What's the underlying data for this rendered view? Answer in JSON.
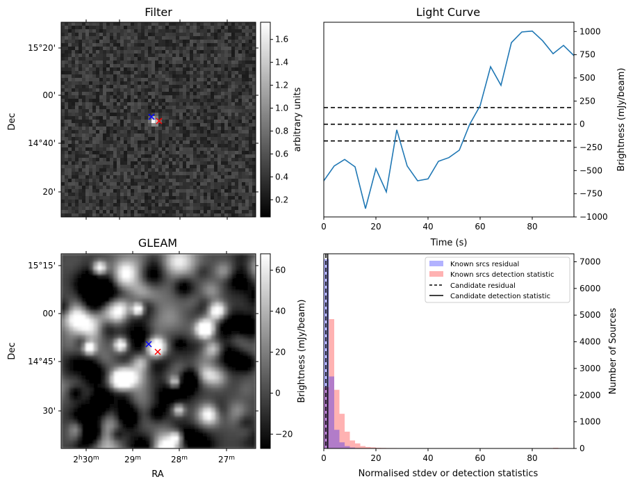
{
  "chart_data": [
    {
      "id": "filter",
      "type": "heatmap",
      "title": "Filter",
      "xlabel": "",
      "ylabel": "Dec",
      "y_ticks": [
        "15°20'",
        "00'",
        "14°40'",
        "20'"
      ],
      "colorbar": {
        "label": "arbitrary units",
        "range": [
          0.05,
          1.75
        ],
        "ticks": [
          0.2,
          0.4,
          0.6,
          0.8,
          1.0,
          1.2,
          1.4,
          1.6
        ],
        "tick_labels": [
          "0.2",
          "0.4",
          "0.6",
          "0.8",
          "1.0",
          "1.2",
          "1.4",
          "1.6"
        ]
      },
      "markers": [
        {
          "name": "candidate",
          "symbol": "x",
          "color": "#0000ff"
        },
        {
          "name": "catalog",
          "symbol": "x",
          "color": "#ff0000"
        }
      ]
    },
    {
      "id": "light_curve",
      "type": "line",
      "title": "Light Curve",
      "xlabel": "Time (s)",
      "ylabel": "Brightness (mJy/beam)",
      "xlim": [
        0,
        96
      ],
      "ylim": [
        -1000,
        1100
      ],
      "x_ticks": [
        0,
        20,
        40,
        60,
        80
      ],
      "y_ticks": [
        -1000,
        -750,
        -500,
        -250,
        0,
        250,
        500,
        750,
        1000
      ],
      "y_tick_labels": [
        "−1000",
        "−750",
        "−500",
        "−250",
        "0",
        "250",
        "500",
        "750",
        "1000"
      ],
      "series": [
        {
          "name": "light curve",
          "color": "#1f77b4",
          "x": [
            0,
            4,
            8,
            12,
            16,
            20,
            24,
            28,
            32,
            36,
            40,
            44,
            48,
            52,
            56,
            60,
            64,
            68,
            72,
            76,
            80,
            84,
            88,
            92,
            96
          ],
          "y": [
            -610,
            -450,
            -380,
            -460,
            -910,
            -480,
            -730,
            -60,
            -450,
            -610,
            -590,
            -400,
            -360,
            -280,
            0,
            200,
            620,
            420,
            880,
            995,
            1005,
            900,
            760,
            850,
            740
          ]
        }
      ],
      "hlines": [
        {
          "y": 180,
          "style": "dashed",
          "color": "#000000"
        },
        {
          "y": 0,
          "style": "dashed",
          "color": "#000000"
        },
        {
          "y": -180,
          "style": "dashed",
          "color": "#000000"
        }
      ]
    },
    {
      "id": "gleam",
      "type": "heatmap",
      "title": "GLEAM",
      "xlabel": "RA",
      "ylabel": "Dec",
      "x_ticks": [
        {
          "main": "2",
          "sup1": "h",
          "mid": "30",
          "sup2": "m"
        },
        {
          "main": "29",
          "sup1": "m",
          "mid": "",
          "sup2": ""
        },
        {
          "main": "28",
          "sup1": "m",
          "mid": "",
          "sup2": ""
        },
        {
          "main": "27",
          "sup1": "m",
          "mid": "",
          "sup2": ""
        }
      ],
      "y_ticks": [
        "15°15'",
        "00'",
        "14°45'",
        "30'"
      ],
      "colorbar": {
        "label": "Brightness (mJy/beam)",
        "range": [
          -27,
          68
        ],
        "ticks": [
          -20,
          0,
          20,
          40,
          60
        ],
        "tick_labels": [
          "−20",
          "0",
          "20",
          "40",
          "60"
        ]
      },
      "markers": [
        {
          "name": "candidate",
          "symbol": "x",
          "color": "#0000ff"
        },
        {
          "name": "catalog",
          "symbol": "x",
          "color": "#ff0000"
        }
      ]
    },
    {
      "id": "histogram",
      "type": "bar",
      "xlabel": "Normalised stdev or detection statistics",
      "ylabel": "Number of Sources",
      "xlim": [
        0,
        96
      ],
      "ylim": [
        0,
        7300
      ],
      "x_ticks": [
        0,
        20,
        40,
        60,
        80
      ],
      "y_ticks": [
        0,
        1000,
        2000,
        3000,
        4000,
        5000,
        6000,
        7000
      ],
      "bin_width": 2,
      "series": [
        {
          "name": "Known srcs residual",
          "color": "#0000ff",
          "bins_start": [
            0,
            2,
            4,
            6,
            8,
            10,
            12
          ],
          "counts": [
            7100,
            2700,
            700,
            230,
            90,
            35,
            15
          ]
        },
        {
          "name": "Known srcs detection statistic",
          "color": "#ff0000",
          "bins_start": [
            0,
            2,
            4,
            6,
            8,
            10,
            12,
            14,
            16,
            18,
            20,
            22,
            24,
            26,
            28,
            30,
            32,
            34,
            36,
            38,
            40,
            88
          ],
          "counts": [
            2300,
            4850,
            2200,
            1300,
            630,
            300,
            190,
            90,
            55,
            40,
            25,
            20,
            15,
            15,
            12,
            10,
            10,
            10,
            8,
            6,
            5,
            25
          ]
        }
      ],
      "vlines": [
        {
          "name": "Candidate residual",
          "x": 0.8,
          "style": "dashed",
          "color": "#000000"
        },
        {
          "name": "Candidate detection statistic",
          "x": 1.5,
          "style": "solid",
          "color": "#000000"
        }
      ],
      "legend": {
        "position": "top-right",
        "entries": [
          "Known srcs residual",
          "Known srcs detection statistic",
          "Candidate residual",
          "Candidate detection statistic"
        ]
      }
    }
  ]
}
